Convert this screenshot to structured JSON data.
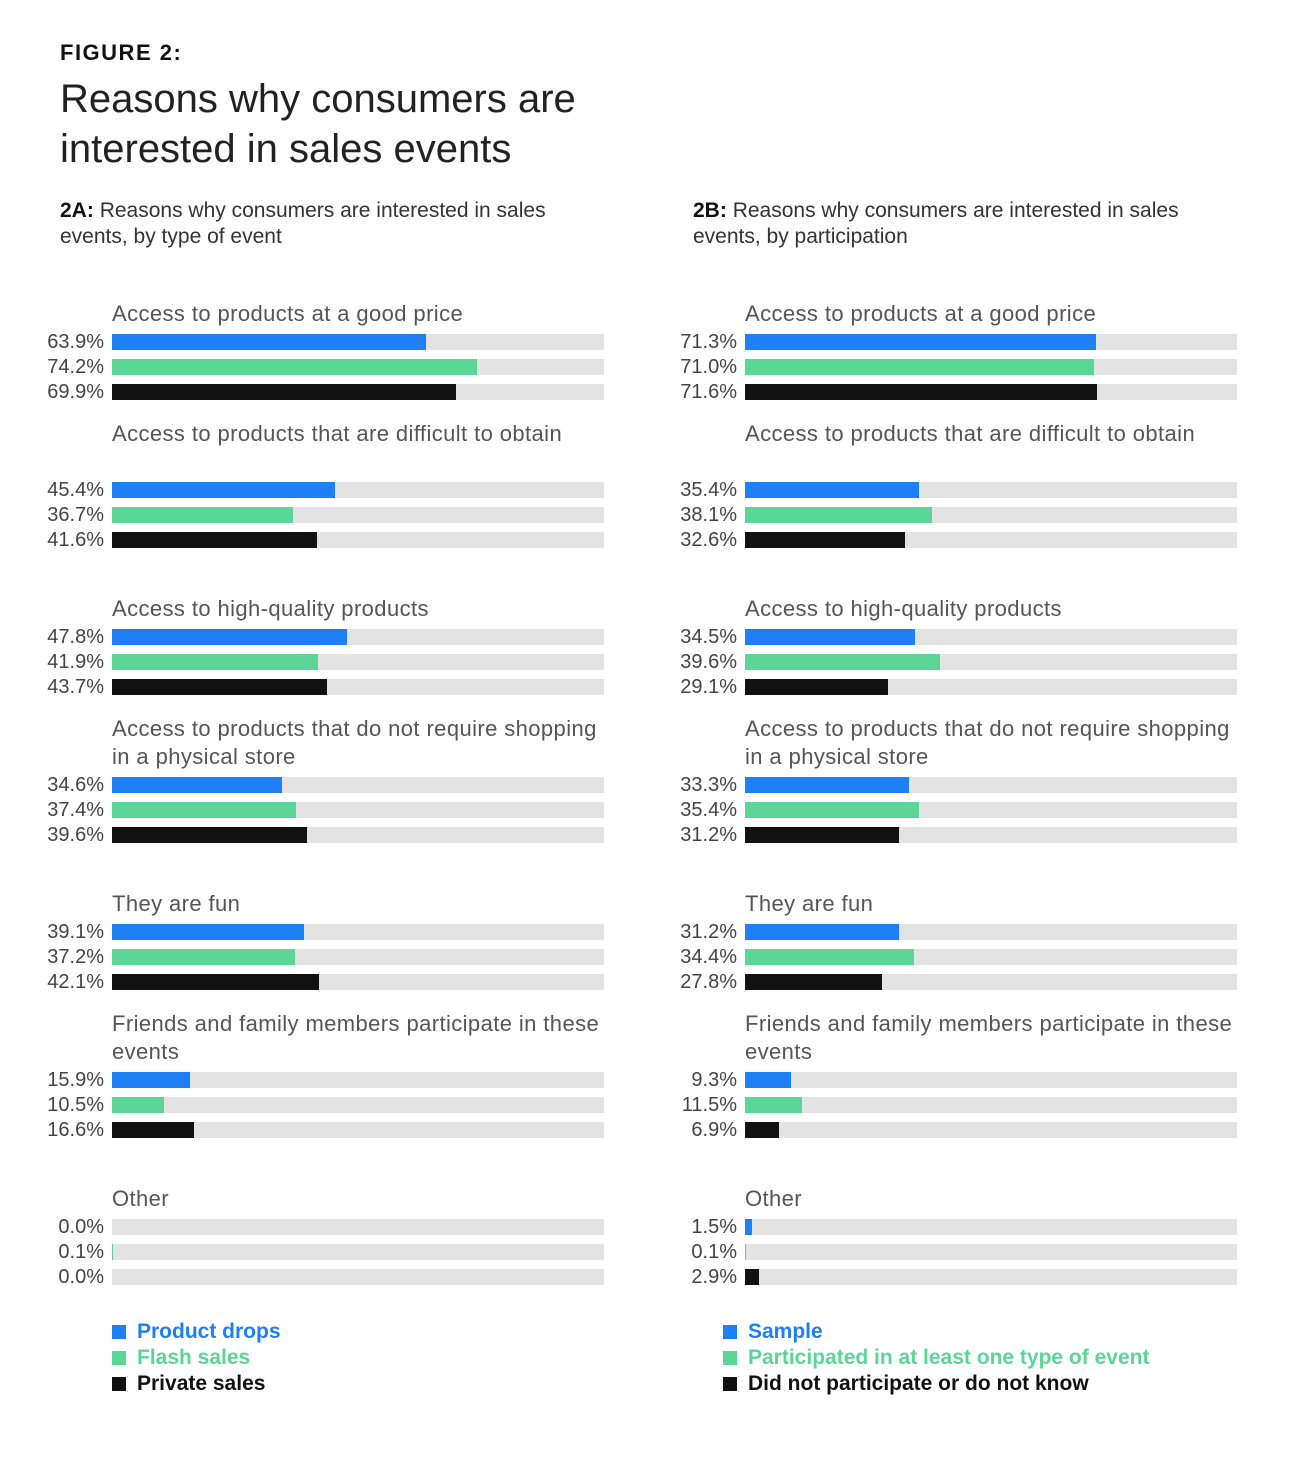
{
  "figure_label": "FIGURE 2:",
  "title": "Reasons why consumers are interested in sales events",
  "colors": {
    "blue": "#1f7ff5",
    "green": "#5bd696",
    "black": "#111111",
    "track": "#e3e3e3"
  },
  "chart_data": [
    {
      "type": "bar",
      "orientation": "horizontal",
      "prefix": "2A:",
      "title": "Reasons why consumers are interested in sales events, by type of event",
      "xlim": [
        0,
        100
      ],
      "unit": "%",
      "categories": [
        "Access to products at a good price",
        "Access to products that are difficult to obtain",
        "Access to high-quality products",
        "Access to products that do not require shopping in a physical store",
        "They are fun",
        "Friends and family members participate in these events",
        "Other"
      ],
      "series": [
        {
          "name": "Product drops",
          "color": "#1f7ff5",
          "values": [
            63.9,
            45.4,
            47.8,
            34.6,
            39.1,
            15.9,
            0.0
          ]
        },
        {
          "name": "Flash sales",
          "color": "#5bd696",
          "values": [
            74.2,
            36.7,
            41.9,
            37.4,
            37.2,
            10.5,
            0.1
          ]
        },
        {
          "name": "Private sales",
          "color": "#111111",
          "values": [
            69.9,
            41.6,
            43.7,
            39.6,
            42.1,
            16.6,
            0.0
          ]
        }
      ]
    },
    {
      "type": "bar",
      "orientation": "horizontal",
      "prefix": "2B:",
      "title": "Reasons why consumers are interested in sales events, by participation",
      "xlim": [
        0,
        100
      ],
      "unit": "%",
      "categories": [
        "Access to products at a good price",
        "Access to products that are difficult to obtain",
        "Access to high-quality products",
        "Access to products that do not require shopping in a physical store",
        "They are fun",
        "Friends and family members participate in these events",
        "Other"
      ],
      "series": [
        {
          "name": "Sample",
          "color": "#1f7ff5",
          "values": [
            71.3,
            35.4,
            34.5,
            33.3,
            31.2,
            9.3,
            1.5
          ]
        },
        {
          "name": "Participated in at least one type of event",
          "color": "#5bd696",
          "values": [
            71.0,
            38.1,
            39.6,
            35.4,
            34.4,
            11.5,
            0.1
          ]
        },
        {
          "name": "Did not participate or do not know",
          "color": "#111111",
          "values": [
            71.6,
            32.6,
            29.1,
            31.2,
            27.8,
            6.9,
            2.9
          ]
        }
      ]
    }
  ]
}
